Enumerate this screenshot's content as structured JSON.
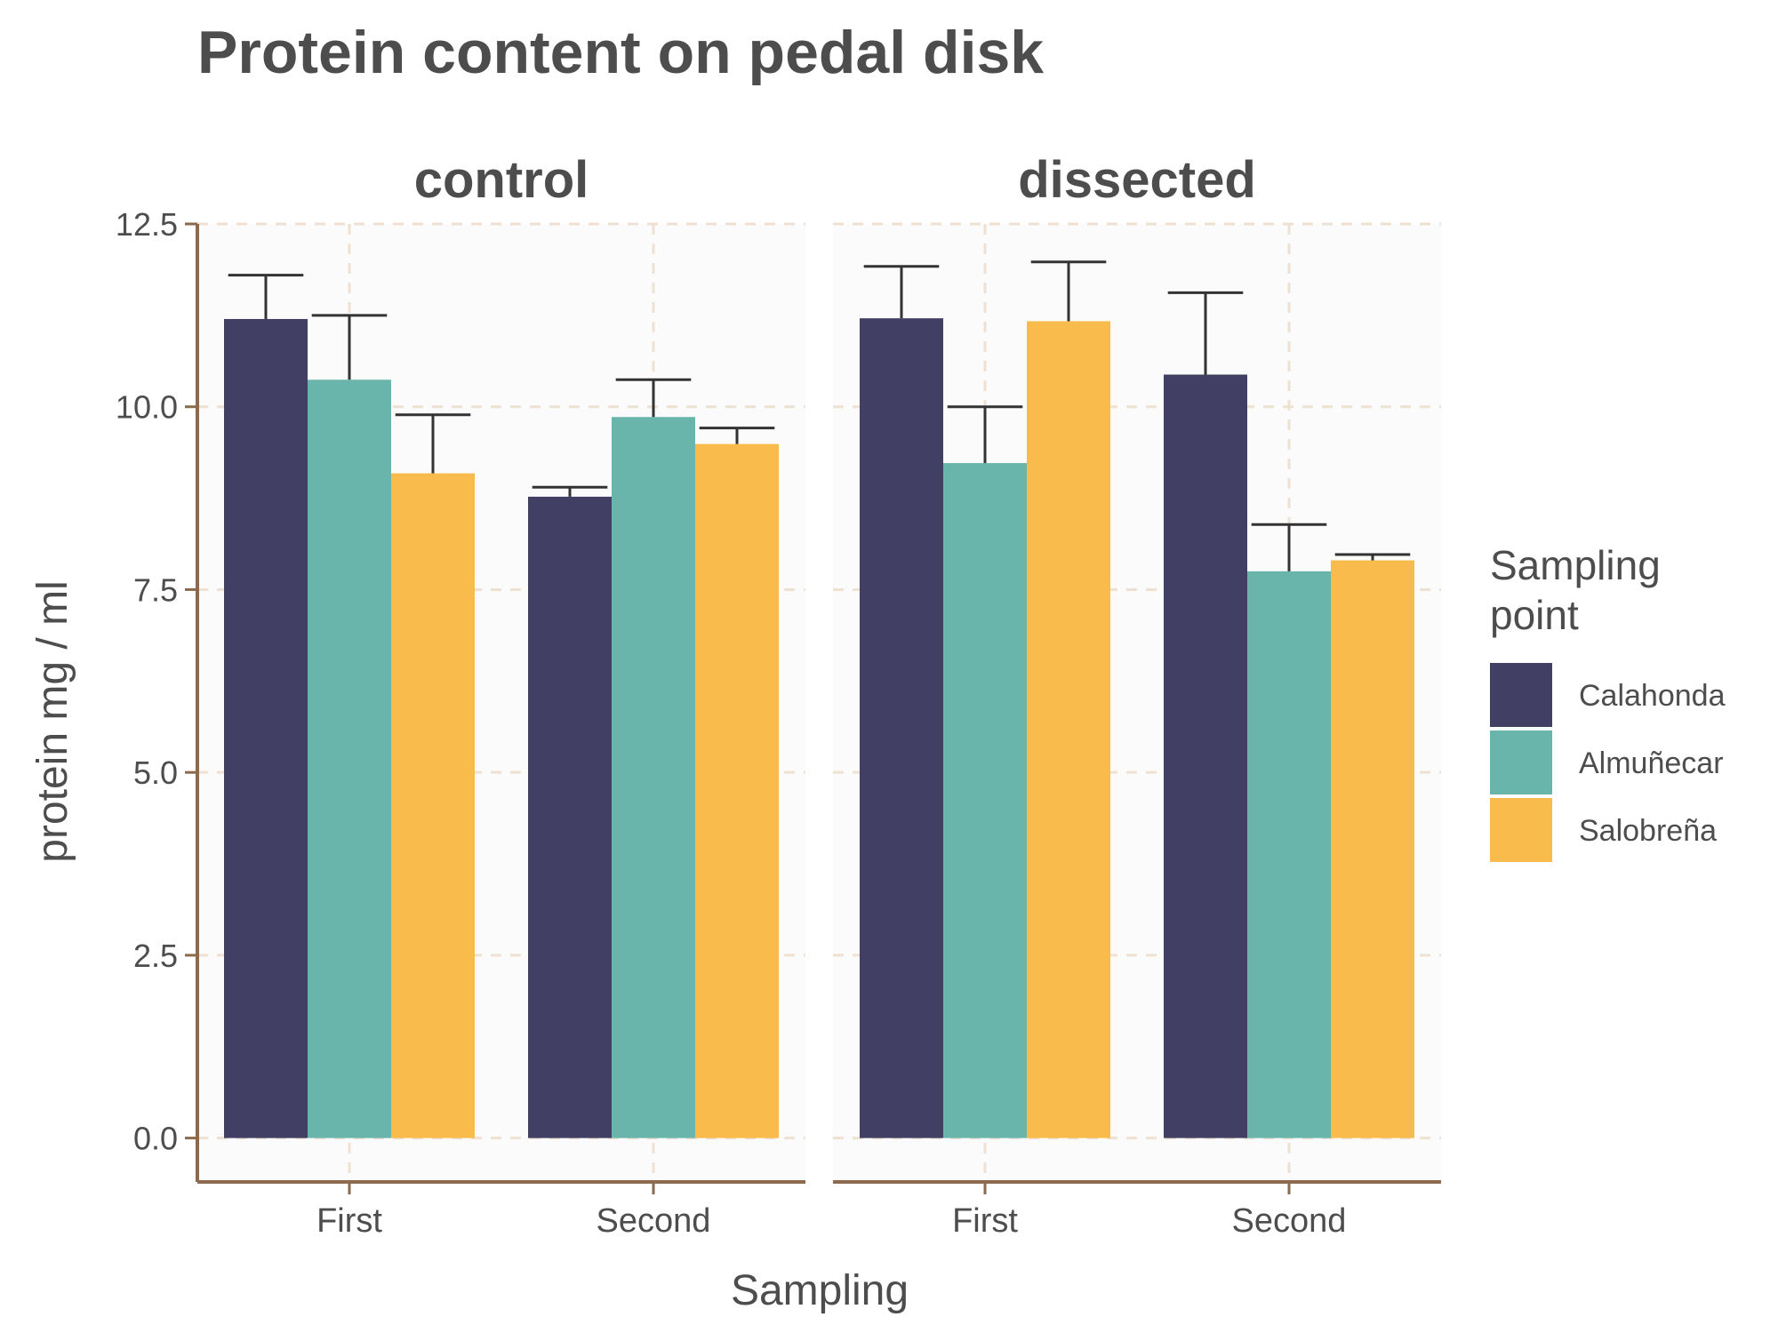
{
  "chart_data": {
    "type": "bar",
    "title": "Protein content on pedal disk",
    "xlabel": "Sampling",
    "ylabel": "protein mg / ml",
    "ylim": [
      -0.6,
      12.5
    ],
    "yticks": [
      "0.0",
      "2.5",
      "5.0",
      "7.5",
      "10.0",
      "12.5"
    ],
    "ytick_values": [
      0,
      2.5,
      5,
      7.5,
      10,
      12.5
    ],
    "grid": true,
    "legend_position": "right",
    "legend_title_lines": [
      "Sampling",
      "point"
    ],
    "panels": [
      {
        "label": "control",
        "categories": [
          "First",
          "Second"
        ],
        "series": [
          {
            "name": "Calahonda",
            "values": [
              11.2,
              8.77
            ],
            "errors": [
              0.6,
              0.13
            ]
          },
          {
            "name": "Almuñecar",
            "values": [
              10.37,
              9.86
            ],
            "errors": [
              0.88,
              0.51
            ]
          },
          {
            "name": "Salobreña",
            "values": [
              9.09,
              9.49
            ],
            "errors": [
              0.8,
              0.22
            ]
          }
        ]
      },
      {
        "label": "dissected",
        "categories": [
          "First",
          "Second"
        ],
        "series": [
          {
            "name": "Calahonda",
            "values": [
              11.21,
              10.44
            ],
            "errors": [
              0.71,
              1.12
            ]
          },
          {
            "name": "Almuñecar",
            "values": [
              9.23,
              7.75
            ],
            "errors": [
              0.77,
              0.64
            ]
          },
          {
            "name": "Salobreña",
            "values": [
              11.17,
              7.9
            ],
            "errors": [
              0.81,
              0.08
            ]
          }
        ]
      }
    ],
    "colors": {
      "Calahonda": "#413f63",
      "Almuñecar": "#6ab5ab",
      "Salobreña": "#f9bb4b"
    }
  }
}
